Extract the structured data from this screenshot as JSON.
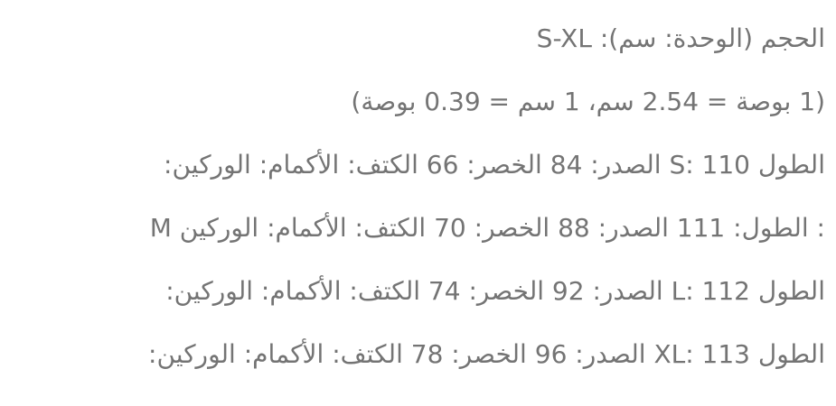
{
  "page": {
    "background_color": "#ffffff",
    "text_color": "#747474"
  },
  "size_chart": {
    "title_line": "الحجم (الوحدة: سم): S-XL",
    "conversion_line": "(1 بوصة = 2.54 سم، 1 سم = 0.39 بوصة)",
    "rows": [
      {
        "size": "S",
        "text": "الطول S: 110 الصدر: 84 الخصر: 66 الكتف: الأكمام: الوركين:"
      },
      {
        "size": "M",
        "text": ": الطول: 111 الصدر: 88 الخصر: 70 الكتف: الأكمام: الوركين M"
      },
      {
        "size": "L",
        "text": "الطول L: 112 الصدر: 92 الخصر: 74 الكتف: الأكمام: الوركين:"
      },
      {
        "size": "XL",
        "text": "الطول XL: 113 الصدر: 96 الخصر: 78 الكتف: الأكمام: الوركين:"
      }
    ],
    "measurements": {
      "unit_label": "سم",
      "size_range": "S-XL",
      "conversion": {
        "inch_to_cm": 2.54,
        "cm_to_inch": 0.39
      },
      "labels": {
        "length": "الطول",
        "chest": "الصدر",
        "waist": "الخصر",
        "shoulder": "الكتف",
        "sleeves": "الأكمام",
        "hips": "الوركين"
      },
      "values": [
        {
          "size": "S",
          "length": 110,
          "chest": 84,
          "waist": 66,
          "shoulder": "",
          "sleeves": "",
          "hips": ""
        },
        {
          "size": "M",
          "length": 111,
          "chest": 88,
          "waist": 70,
          "shoulder": "",
          "sleeves": "",
          "hips": ""
        },
        {
          "size": "L",
          "length": 112,
          "chest": 92,
          "waist": 74,
          "shoulder": "",
          "sleeves": "",
          "hips": ""
        },
        {
          "size": "XL",
          "length": 113,
          "chest": 96,
          "waist": 78,
          "shoulder": "",
          "sleeves": "",
          "hips": ""
        }
      ]
    }
  }
}
